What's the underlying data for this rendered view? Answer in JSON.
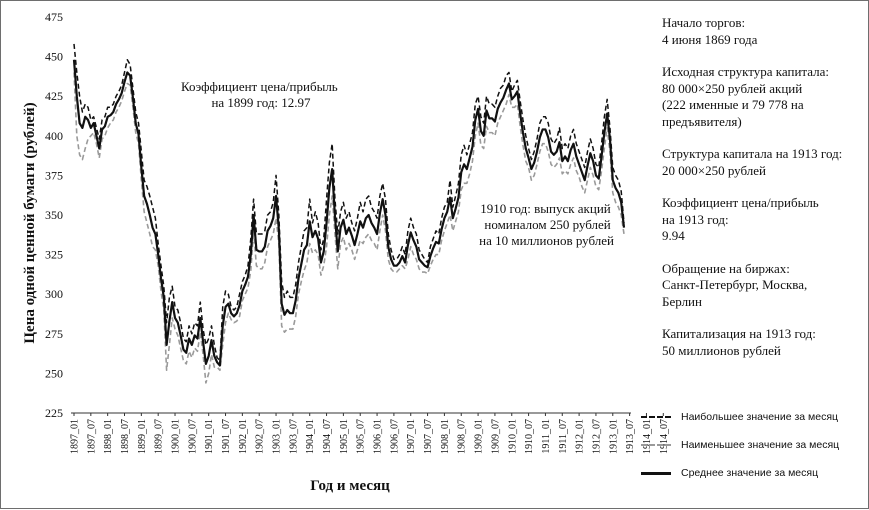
{
  "chart_data": {
    "type": "line",
    "title": "",
    "xlabel": "Год и месяц",
    "ylabel": "Цена одной ценной бумаги (рублей)",
    "ylim": [
      225,
      475
    ],
    "yticks": [
      225,
      250,
      275,
      300,
      325,
      350,
      375,
      400,
      425,
      450,
      475
    ],
    "x_tick_labels": [
      "1897_01",
      "1897_07",
      "1898_01",
      "1898_07",
      "1899_01",
      "1899_07",
      "1900_01",
      "1900_07",
      "1901_01",
      "1901_07",
      "1902_01",
      "1902_07",
      "1903_01",
      "1903_07",
      "1904_01",
      "1904_07",
      "1905_01",
      "1905_07",
      "1906_01",
      "1906_07",
      "1907_01",
      "1907_07",
      "1908_01",
      "1908_07",
      "1909_01",
      "1909_07",
      "1910_01",
      "1910_07",
      "1911_01",
      "1911_07",
      "1912_01",
      "1912_07",
      "1913_01",
      "1913_07",
      "1914_01",
      "1914_07"
    ],
    "grid": false,
    "legend_position": "bottom-right",
    "series": [
      {
        "name": "Наибольшее значение за месяц",
        "color": "#111111",
        "dash": "dashed",
        "values": [
          458,
          440,
          425,
          415,
          420,
          418,
          410,
          412,
          405,
          398,
          410,
          412,
          418,
          418,
          420,
          425,
          428,
          432,
          440,
          448,
          445,
          430,
          415,
          408,
          390,
          372,
          368,
          362,
          355,
          348,
          332,
          318,
          305,
          282,
          298,
          305,
          292,
          290,
          282,
          272,
          270,
          280,
          275,
          282,
          280,
          295,
          278,
          268,
          272,
          280,
          268,
          260,
          258,
          292,
          302,
          300,
          292,
          290,
          292,
          300,
          308,
          312,
          318,
          335,
          360,
          338,
          338,
          338,
          340,
          350,
          352,
          358,
          375,
          350,
          308,
          298,
          302,
          298,
          298,
          306,
          320,
          330,
          340,
          342,
          360,
          345,
          352,
          345,
          328,
          335,
          360,
          383,
          395,
          360,
          338,
          352,
          358,
          348,
          352,
          345,
          340,
          348,
          358,
          352,
          360,
          362,
          355,
          352,
          348,
          362,
          370,
          360,
          338,
          328,
          322,
          322,
          325,
          330,
          325,
          340,
          348,
          342,
          338,
          328,
          325,
          322,
          320,
          330,
          335,
          340,
          338,
          348,
          355,
          358,
          372,
          355,
          362,
          370,
          388,
          394,
          388,
          395,
          402,
          420,
          425,
          412,
          408,
          425,
          420,
          420,
          418,
          425,
          430,
          432,
          438,
          440,
          428,
          432,
          435,
          422,
          410,
          400,
          392,
          385,
          390,
          398,
          408,
          412,
          412,
          408,
          398,
          395,
          398,
          405,
          392,
          395,
          392,
          400,
          404,
          395,
          390,
          385,
          380,
          390,
          398,
          392,
          382,
          380,
          395,
          412,
          423,
          405,
          380,
          375,
          372,
          365,
          345
        ]
      },
      {
        "name": "Наименьшее значение за месяц",
        "color": "#9a9a9a",
        "dash": "dashed",
        "values": [
          440,
          400,
          388,
          385,
          392,
          398,
          400,
          402,
          395,
          386,
          398,
          400,
          405,
          408,
          410,
          415,
          418,
          422,
          428,
          433,
          432,
          418,
          402,
          395,
          372,
          352,
          345,
          338,
          330,
          328,
          318,
          302,
          290,
          252,
          268,
          285,
          278,
          274,
          266,
          258,
          256,
          264,
          260,
          266,
          264,
          276,
          262,
          244,
          250,
          262,
          254,
          254,
          252,
          268,
          282,
          288,
          284,
          282,
          283,
          286,
          296,
          300,
          304,
          315,
          340,
          318,
          316,
          316,
          320,
          330,
          334,
          338,
          348,
          332,
          280,
          276,
          278,
          278,
          278,
          286,
          300,
          308,
          315,
          320,
          332,
          326,
          328,
          325,
          312,
          318,
          330,
          350,
          362,
          338,
          316,
          332,
          336,
          328,
          332,
          328,
          322,
          328,
          334,
          332,
          336,
          338,
          334,
          332,
          328,
          340,
          350,
          340,
          322,
          316,
          314,
          314,
          316,
          318,
          316,
          322,
          330,
          325,
          322,
          316,
          314,
          314,
          313,
          318,
          322,
          325,
          325,
          334,
          340,
          345,
          350,
          340,
          346,
          352,
          366,
          370,
          370,
          376,
          384,
          400,
          408,
          394,
          392,
          406,
          402,
          402,
          400,
          408,
          412,
          416,
          420,
          426,
          418,
          418,
          420,
          406,
          394,
          384,
          380,
          372,
          375,
          382,
          390,
          395,
          395,
          390,
          382,
          380,
          382,
          386,
          376,
          378,
          376,
          382,
          386,
          378,
          374,
          368,
          364,
          372,
          380,
          375,
          368,
          366,
          378,
          392,
          405,
          390,
          364,
          358,
          355,
          350,
          338
        ]
      },
      {
        "name": "Среднее значение за месяц",
        "color": "#111111",
        "dash": "solid",
        "values": [
          448,
          425,
          408,
          405,
          412,
          410,
          405,
          408,
          400,
          392,
          404,
          406,
          412,
          413,
          415,
          420,
          423,
          427,
          434,
          440,
          438,
          424,
          408,
          401,
          380,
          362,
          357,
          350,
          342,
          338,
          325,
          310,
          298,
          268,
          283,
          295,
          285,
          282,
          274,
          265,
          263,
          272,
          268,
          274,
          272,
          285,
          270,
          256,
          261,
          271,
          261,
          257,
          255,
          280,
          292,
          294,
          288,
          286,
          288,
          293,
          302,
          306,
          311,
          325,
          350,
          328,
          327,
          327,
          330,
          340,
          343,
          348,
          362,
          341,
          294,
          287,
          290,
          288,
          288,
          296,
          310,
          319,
          328,
          331,
          346,
          336,
          340,
          335,
          320,
          327,
          345,
          367,
          379,
          349,
          327,
          342,
          347,
          338,
          342,
          337,
          331,
          338,
          346,
          342,
          348,
          350,
          345,
          342,
          338,
          351,
          360,
          350,
          330,
          322,
          318,
          318,
          320,
          324,
          320,
          331,
          339,
          334,
          330,
          322,
          320,
          318,
          317,
          324,
          329,
          333,
          332,
          341,
          348,
          352,
          361,
          348,
          354,
          361,
          377,
          382,
          379,
          386,
          393,
          410,
          417,
          403,
          400,
          416,
          411,
          411,
          409,
          417,
          421,
          424,
          429,
          433,
          423,
          425,
          428,
          414,
          402,
          392,
          386,
          379,
          383,
          390,
          399,
          404,
          404,
          399,
          390,
          388,
          390,
          396,
          384,
          387,
          384,
          391,
          395,
          387,
          382,
          377,
          372,
          381,
          389,
          384,
          375,
          373,
          387,
          402,
          414,
          398,
          372,
          367,
          364,
          358,
          342
        ]
      }
    ]
  },
  "annotations": [
    {
      "lines": [
        "Коэффициент цена/прибыль",
        "на 1899 год: 12.97"
      ]
    },
    {
      "lines": [
        "1910 год: выпуск акций",
        "номиналом 250 рублей",
        "на 10 миллионов рублей"
      ]
    }
  ],
  "facts": [
    {
      "lines": [
        "Начало торгов:",
        "4 июня 1869 года"
      ]
    },
    {
      "lines": [
        "Исходная структура капитала:",
        "80 000×250 рублей акций",
        "(222 именные и 79 778 на",
        "предъявителя)"
      ]
    },
    {
      "lines": [
        "Структура капитала на 1913 год:",
        "20 000×250 рублей"
      ]
    },
    {
      "lines": [
        "Коэффициент цена/прибыль",
        "на 1913 год:",
        "9.94"
      ]
    },
    {
      "lines": [
        "Обращение на биржах:",
        "Санкт-Петербург, Москва,",
        "Берлин"
      ]
    },
    {
      "lines": [
        "Капитализация на 1913 год:",
        "50 миллионов рублей"
      ]
    }
  ]
}
